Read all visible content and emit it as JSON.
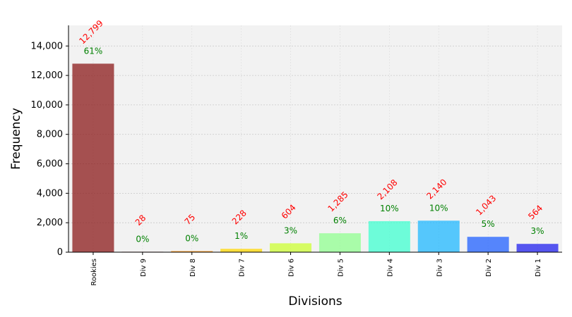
{
  "chart_data": {
    "type": "bar",
    "title": "",
    "xlabel": "Divisions",
    "ylabel": "Frequency",
    "ylim": [
      0,
      15400
    ],
    "yticks": [
      0,
      2000,
      4000,
      6000,
      8000,
      10000,
      12000,
      14000
    ],
    "ytick_labels": [
      "0",
      "2,000",
      "4,000",
      "6,000",
      "8,000",
      "10,000",
      "12,000",
      "14,000"
    ],
    "grid": true,
    "categories": [
      "Rookies",
      "Div 9",
      "Div 8",
      "Div 7",
      "Div 6",
      "Div 5",
      "Div 4",
      "Div 3",
      "Div 2",
      "Div 1"
    ],
    "values": [
      12799,
      28,
      75,
      228,
      604,
      1285,
      2108,
      2140,
      1043,
      564
    ],
    "value_labels": [
      "12,799",
      "28",
      "75",
      "228",
      "604",
      "1,285",
      "2,108",
      "2,140",
      "1,043",
      "564"
    ],
    "percent_labels": [
      "61%",
      "0%",
      "0%",
      "1%",
      "3%",
      "6%",
      "10%",
      "10%",
      "5%",
      "3%"
    ],
    "colors": [
      "#8b1a1a",
      "#8b0000",
      "#ff8c00",
      "#ffd700",
      "#ccff33",
      "#90ff90",
      "#40ffd0",
      "#20b8ff",
      "#2060ff",
      "#2020ee"
    ],
    "value_label_color": "#ff0000",
    "percent_label_color": "#008000",
    "plot_background": "#f2f2f2"
  }
}
